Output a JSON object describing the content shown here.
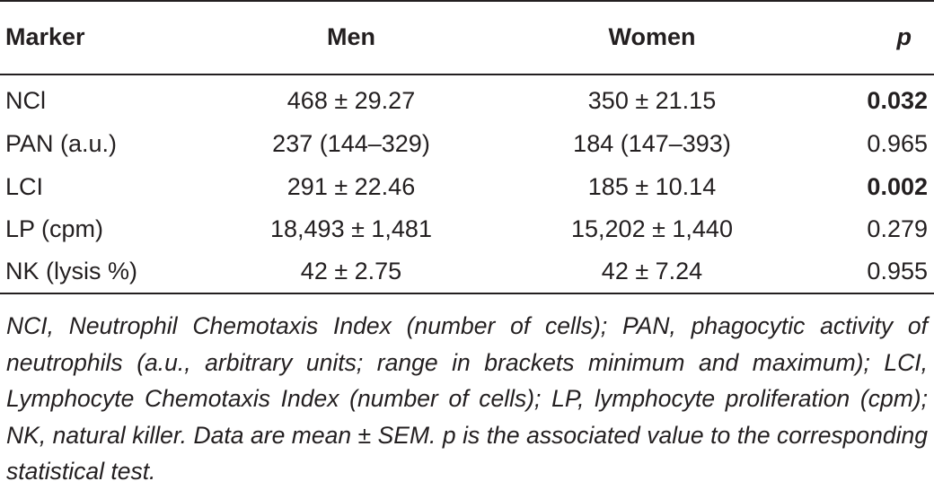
{
  "table": {
    "headers": {
      "marker": "Marker",
      "men": "Men",
      "women": "Women",
      "p": "p"
    },
    "rows": [
      {
        "marker": "NCl",
        "men": "468 ± 29.27",
        "women": "350 ± 21.15",
        "p": "0.032",
        "p_bold": true
      },
      {
        "marker": "PAN (a.u.)",
        "men": "237 (144–329)",
        "women": "184 (147–393)",
        "p": "0.965",
        "p_bold": false
      },
      {
        "marker": "LCI",
        "men": "291 ± 22.46",
        "women": "185 ± 10.14",
        "p": "0.002",
        "p_bold": true
      },
      {
        "marker": "LP (cpm)",
        "men": "18,493 ± 1,481",
        "women": "15,202 ± 1,440",
        "p": "0.279",
        "p_bold": false
      },
      {
        "marker": "NK (lysis %)",
        "men": "42 ± 2.75",
        "women": "42 ± 7.24",
        "p": "0.955",
        "p_bold": false
      }
    ]
  },
  "footnote": "NCI, Neutrophil Chemotaxis Index (number of cells); PAN, phagocytic activity of neutrophils (a.u., arbitrary units; range in brackets minimum and maximum); LCI, Lymphocyte Chemotaxis Index (number of cells); LP, lymphocyte proliferation (cpm); NK, natural killer. Data are mean ± SEM. p is the associated value to the corresponding statistical test."
}
